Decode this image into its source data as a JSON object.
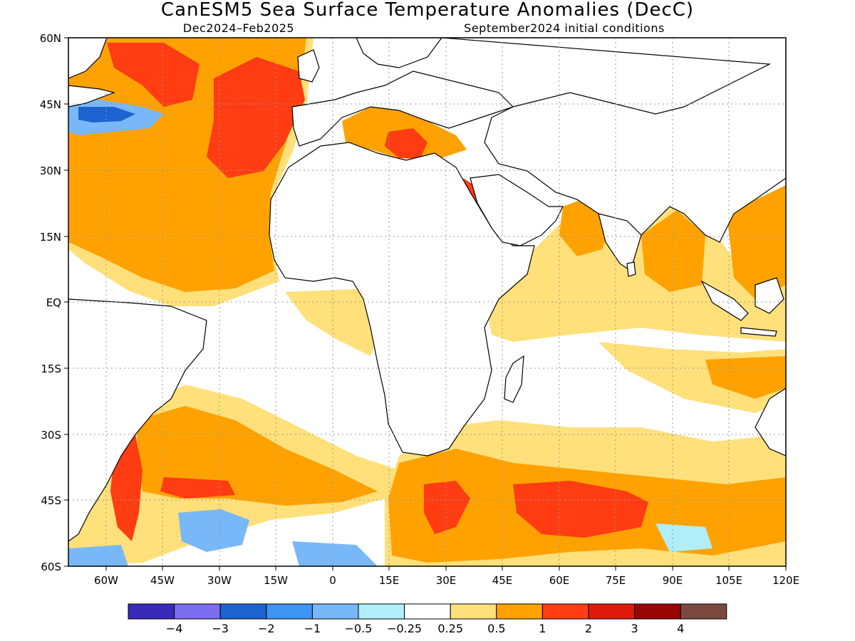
{
  "title": "CanESM5 Sea Surface Temperature Anomalies (DecC)",
  "subtitle_left": "Dec2024–Feb2025",
  "subtitle_right": "September2024 initial conditions",
  "lat_labels": [
    "60N",
    "45N",
    "30N",
    "15N",
    "EQ",
    "15S",
    "30S",
    "45S",
    "60S"
  ],
  "lon_labels": [
    "60W",
    "45W",
    "30W",
    "15W",
    "0",
    "15E",
    "30E",
    "45E",
    "60E",
    "75E",
    "90E",
    "105E",
    "120E"
  ],
  "map": {
    "lon_range": [
      -70,
      120
    ],
    "lat_range": [
      -60,
      60
    ],
    "grid": "dotted"
  },
  "colorbar": {
    "colors": [
      "#3a2ab8",
      "#7b6cf0",
      "#1c63d0",
      "#3d94f2",
      "#78b8f8",
      "#b0eefa",
      "#ffffff",
      "#ffe07a",
      "#ffa200",
      "#ff3c12",
      "#de1a0c",
      "#9a0606",
      "#7a4a3e"
    ],
    "labels": [
      "−4",
      "−3",
      "−2",
      "−1",
      "−0.5",
      "−0.25",
      "0.25",
      "0.5",
      "1",
      "2",
      "3",
      "4"
    ]
  }
}
